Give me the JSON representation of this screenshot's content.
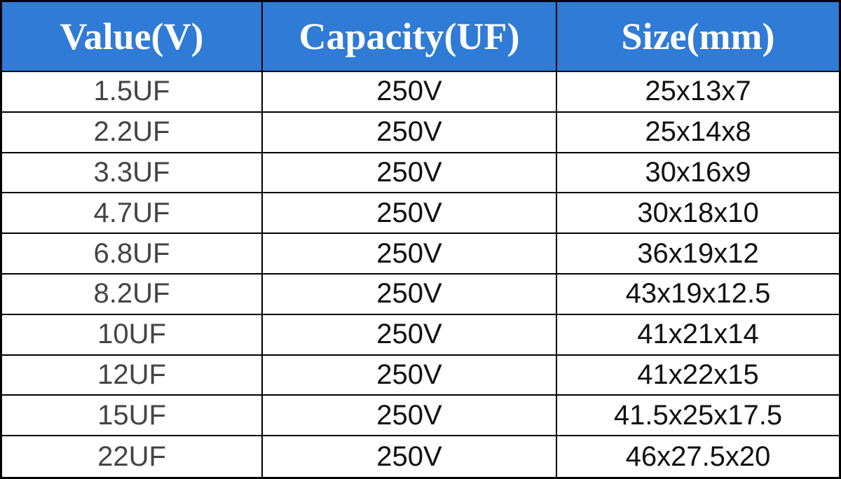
{
  "table": {
    "header": [
      "Value(V)",
      "Capacity(UF)",
      "Size(mm)"
    ],
    "rows": [
      [
        "1.5UF",
        "250V",
        "25x13x7"
      ],
      [
        "2.2UF",
        "250V",
        "25x14x8"
      ],
      [
        "3.3UF",
        "250V",
        "30x16x9"
      ],
      [
        "4.7UF",
        "250V",
        "30x18x10"
      ],
      [
        "6.8UF",
        "250V",
        "36x19x12"
      ],
      [
        "8.2UF",
        "250V",
        "43x19x12.5"
      ],
      [
        "10UF",
        "250V",
        "41x21x14"
      ],
      [
        "12UF",
        "250V",
        "41x22x15"
      ],
      [
        "15UF",
        "250V",
        "41.5x25x17.5"
      ],
      [
        "22UF",
        "250V",
        "46x27.5x20"
      ]
    ]
  }
}
